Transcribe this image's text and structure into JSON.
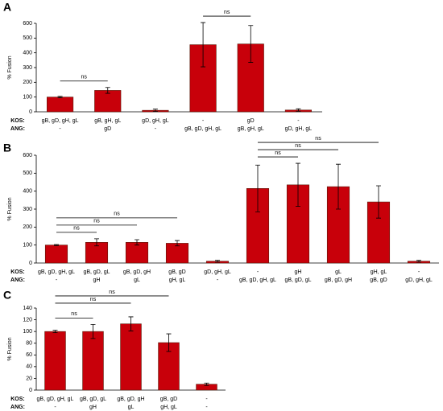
{
  "chart_data": [
    {
      "type": "bar",
      "panel": "A",
      "ylabel": "% Fusion",
      "color": "#c8000a",
      "error_color": "#000000",
      "ylim": [
        0,
        600
      ],
      "yticks": [
        0,
        100,
        200,
        300,
        400,
        500,
        600
      ],
      "rows": [
        {
          "name": "KOS:",
          "labels": [
            "gB, gD, gH, gL",
            "gB, gH, gL",
            "gD, gH, gL",
            "-",
            "gD",
            "-"
          ]
        },
        {
          "name": "ANG:",
          "labels": [
            "-",
            "gD",
            "-",
            "gB, gD, gH, gL",
            "gB, gH, gL",
            "gD, gH, gL"
          ]
        }
      ],
      "values": [
        100,
        145,
        10,
        455,
        460,
        12
      ],
      "errors": [
        5,
        20,
        8,
        150,
        125,
        8
      ],
      "annotations": [
        {
          "text": "ns",
          "from": 0,
          "to": 1
        },
        {
          "text": "ns",
          "from": 3,
          "to": 4
        }
      ]
    },
    {
      "type": "bar",
      "panel": "B",
      "ylabel": "% Fusion",
      "color": "#c8000a",
      "error_color": "#000000",
      "ylim": [
        0,
        600
      ],
      "yticks": [
        0,
        100,
        200,
        300,
        400,
        500,
        600
      ],
      "rows": [
        {
          "name": "KOS:",
          "labels": [
            "gB, gD, gH, gL",
            "gB, gD, gL",
            "gB, gD, gH",
            "gB, gD",
            "gD, gH, gL",
            "-",
            "gH",
            "gL",
            "gH, gL",
            "-"
          ]
        },
        {
          "name": "ANG:",
          "labels": [
            "-",
            "gH",
            "gL",
            "gH, gL",
            "-",
            "gB, gD, gH, gL",
            "gB, gD, gL",
            "gB, gD, gH",
            "gB, gD",
            "gD, gH, gL"
          ]
        }
      ],
      "values": [
        100,
        115,
        115,
        110,
        10,
        415,
        435,
        425,
        340,
        10
      ],
      "errors": [
        3,
        20,
        15,
        15,
        5,
        130,
        120,
        125,
        90,
        5
      ],
      "annotations": [
        {
          "text": "ns",
          "from": 0,
          "to": 1
        },
        {
          "text": "ns",
          "from": 0,
          "to": 2
        },
        {
          "text": "ns",
          "from": 0,
          "to": 3
        },
        {
          "text": "ns",
          "from": 5,
          "to": 6
        },
        {
          "text": "ns",
          "from": 5,
          "to": 7
        },
        {
          "text": "ns",
          "from": 5,
          "to": 8
        }
      ]
    },
    {
      "type": "bar",
      "panel": "C",
      "ylabel": "% Fusion",
      "color": "#c8000a",
      "error_color": "#000000",
      "ylim": [
        0,
        140
      ],
      "yticks": [
        0,
        20,
        40,
        60,
        80,
        100,
        120,
        140
      ],
      "rows": [
        {
          "name": "KOS:",
          "labels": [
            "gB, gD, gH, gL",
            "gB, gD, gL",
            "gB, gD, gH",
            "gB, gD",
            "-"
          ]
        },
        {
          "name": "ANG:",
          "labels": [
            "-",
            "gH",
            "gL",
            "gH, gL",
            "-"
          ]
        }
      ],
      "values": [
        100,
        100,
        113,
        81,
        10
      ],
      "errors": [
        2,
        12,
        12,
        15,
        2
      ],
      "annotations": [
        {
          "text": "ns",
          "from": 0,
          "to": 1
        },
        {
          "text": "ns",
          "from": 0,
          "to": 2
        },
        {
          "text": "ns",
          "from": 0,
          "to": 3
        }
      ]
    }
  ]
}
